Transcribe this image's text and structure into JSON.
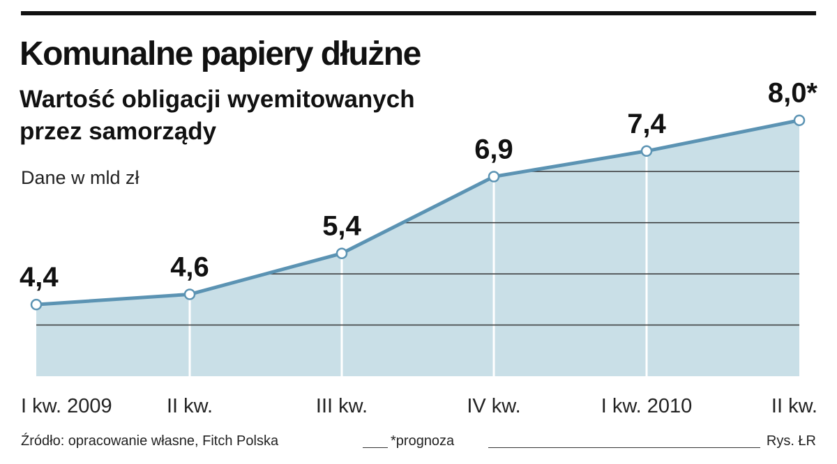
{
  "title": "Komunalne papiery dłużne",
  "subtitle_line1": "Wartość obligacji wyemitowanych",
  "subtitle_line2": "przez samorządy",
  "units_label": "Dane w mld zł",
  "footer": {
    "source": "Źródło: opracowanie własne, Fitch Polska",
    "note": "*prognoza",
    "credit": "Rys. ŁR"
  },
  "colors": {
    "line": "#5b93b3",
    "fill": "#c9dfe7",
    "grid": "#333333",
    "text": "#111111"
  },
  "chart_data": {
    "type": "area",
    "categories": [
      "I kw. 2009",
      "II kw.",
      "III kw.",
      "IV kw.",
      "I kw. 2010",
      "II kw."
    ],
    "values": [
      4.4,
      4.6,
      5.4,
      6.9,
      7.4,
      8.0
    ],
    "value_labels": [
      "4,4",
      "4,6",
      "5,4",
      "6,9",
      "7,4",
      "8,0*"
    ],
    "title": "Komunalne papiery dłużne",
    "ylabel": "Dane w mld zł",
    "ylim": [
      3.0,
      8.2
    ],
    "gridlines": [
      4.0,
      5.0,
      6.0,
      7.0
    ],
    "grid": true
  }
}
